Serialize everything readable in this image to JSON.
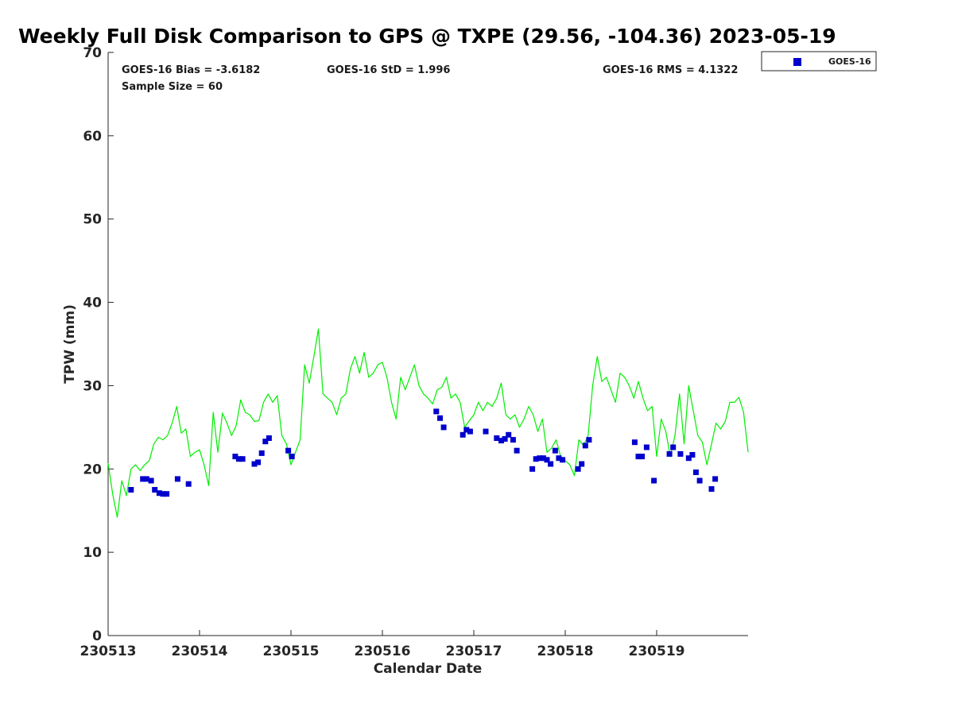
{
  "chart_data": {
    "type": "scatter",
    "title": "Weekly Full Disk Comparison to GPS @ TXPE (29.56, -104.36) 2023-05-19",
    "xlabel": "Calendar Date",
    "ylabel": "TPW (mm)",
    "xlim": [
      230513,
      230520
    ],
    "ylim": [
      0,
      70
    ],
    "x_ticks": [
      {
        "value": 230513,
        "label": "230513"
      },
      {
        "value": 230514,
        "label": "230514"
      },
      {
        "value": 230515,
        "label": "230515"
      },
      {
        "value": 230516,
        "label": "230516"
      },
      {
        "value": 230517,
        "label": "230517"
      },
      {
        "value": 230518,
        "label": "230518"
      },
      {
        "value": 230519,
        "label": "230519"
      }
    ],
    "y_ticks": [
      {
        "value": 0,
        "label": "0"
      },
      {
        "value": 10,
        "label": "10"
      },
      {
        "value": 20,
        "label": "20"
      },
      {
        "value": 30,
        "label": "30"
      },
      {
        "value": 40,
        "label": "40"
      },
      {
        "value": 50,
        "label": "50"
      },
      {
        "value": 60,
        "label": "60"
      },
      {
        "value": 70,
        "label": "70"
      }
    ],
    "grid": false,
    "legend_position": "top-right, outside plot",
    "stats": {
      "bias": "GOES-16 Bias = -3.6182",
      "std": "GOES-16 StD = 1.996",
      "rms": "GOES-16 RMS = 4.1322",
      "sample": "Sample Size = 60"
    },
    "colors": {
      "gps": "#00ee00",
      "goes": "#0000cc",
      "axis": "#262626"
    },
    "series": [
      {
        "name": "GOES-16",
        "marker": "square",
        "x": [
          230513.25,
          230513.38,
          230513.42,
          230513.47,
          230513.51,
          230513.56,
          230513.6,
          230513.64,
          230513.76,
          230513.88,
          230514.39,
          230514.43,
          230514.47,
          230514.6,
          230514.64,
          230514.68,
          230514.72,
          230514.76,
          230514.97,
          230515.01,
          230516.59,
          230516.63,
          230516.67,
          230516.88,
          230516.92,
          230516.96,
          230517.13,
          230517.25,
          230517.3,
          230517.34,
          230517.38,
          230517.43,
          230517.47,
          230517.64,
          230517.68,
          230517.72,
          230517.76,
          230517.8,
          230517.84,
          230517.89,
          230517.93,
          230517.97,
          230518.14,
          230518.18,
          230518.22,
          230518.26,
          230518.76,
          230518.8,
          230518.84,
          230518.89,
          230518.97,
          230519.14,
          230519.18,
          230519.26,
          230519.35,
          230519.39,
          230519.43,
          230519.47,
          230519.6,
          230519.64
        ],
        "y": [
          17.5,
          18.8,
          18.8,
          18.6,
          17.5,
          17.1,
          17.0,
          17.0,
          18.8,
          18.2,
          21.5,
          21.2,
          21.2,
          20.6,
          20.8,
          21.9,
          23.3,
          23.7,
          22.2,
          21.5,
          26.9,
          26.1,
          25.0,
          24.1,
          24.7,
          24.5,
          24.5,
          23.7,
          23.4,
          23.6,
          24.1,
          23.5,
          22.2,
          20.0,
          21.2,
          21.3,
          21.3,
          21.1,
          20.6,
          22.2,
          21.3,
          21.1,
          20.0,
          20.6,
          22.8,
          23.5,
          23.2,
          21.5,
          21.5,
          22.6,
          18.6,
          21.8,
          22.6,
          21.8,
          21.3,
          21.7,
          19.6,
          18.6,
          17.6,
          18.8
        ]
      },
      {
        "name": "",
        "marker": "line",
        "x": [
          230513.0,
          230513.05,
          230513.1,
          230513.15,
          230513.2,
          230513.25,
          230513.3,
          230513.35,
          230513.4,
          230513.45,
          230513.5,
          230513.55,
          230513.6,
          230513.65,
          230513.7,
          230513.75,
          230513.8,
          230513.85,
          230513.9,
          230513.95,
          230514.0,
          230514.05,
          230514.1,
          230514.15,
          230514.2,
          230514.25,
          230514.3,
          230514.35,
          230514.4,
          230514.45,
          230514.5,
          230514.55,
          230514.6,
          230514.65,
          230514.7,
          230514.75,
          230514.8,
          230514.85,
          230514.9,
          230514.95,
          230515.0,
          230515.05,
          230515.1,
          230515.15,
          230515.2,
          230515.25,
          230515.3,
          230515.35,
          230515.4,
          230515.45,
          230515.5,
          230515.55,
          230515.6,
          230515.65,
          230515.7,
          230515.75,
          230515.8,
          230515.85,
          230515.9,
          230515.95,
          230516.0,
          230516.05,
          230516.1,
          230516.15,
          230516.2,
          230516.25,
          230516.3,
          230516.35,
          230516.4,
          230516.45,
          230516.5,
          230516.55,
          230516.6,
          230516.65,
          230516.7,
          230516.75,
          230516.8,
          230516.85,
          230516.9,
          230516.95,
          230517.0,
          230517.05,
          230517.1,
          230517.15,
          230517.2,
          230517.25,
          230517.3,
          230517.35,
          230517.4,
          230517.45,
          230517.5,
          230517.55,
          230517.6,
          230517.65,
          230517.7,
          230517.75,
          230517.8,
          230517.85,
          230517.9,
          230517.95,
          230518.0,
          230518.05,
          230518.1,
          230518.15,
          230518.2,
          230518.25,
          230518.3,
          230518.35,
          230518.4,
          230518.45,
          230518.5,
          230518.55,
          230518.6,
          230518.65,
          230518.7,
          230518.75,
          230518.8,
          230518.85,
          230518.9,
          230518.95,
          230519.0,
          230519.05,
          230519.1,
          230519.15,
          230519.2,
          230519.25,
          230519.3,
          230519.35,
          230519.4,
          230519.45,
          230519.5,
          230519.55,
          230519.6,
          230519.65,
          230519.7,
          230519.75,
          230519.8,
          230519.85,
          230519.9,
          230519.95,
          230520.0
        ],
        "y": [
          20.7,
          17.0,
          14.2,
          18.6,
          16.8,
          20.0,
          20.5,
          19.8,
          20.5,
          21.0,
          23.0,
          23.8,
          23.5,
          24.0,
          25.5,
          27.5,
          24.3,
          24.8,
          21.5,
          22.0,
          22.3,
          20.5,
          18.0,
          26.8,
          22.0,
          26.7,
          25.5,
          24.0,
          25.2,
          28.3,
          26.8,
          26.5,
          25.7,
          25.8,
          28.0,
          29.0,
          28.0,
          28.8,
          24.0,
          23.0,
          20.5,
          22.0,
          23.5,
          32.5,
          30.3,
          33.5,
          36.8,
          29.0,
          28.5,
          28.0,
          26.5,
          28.5,
          29.0,
          32.0,
          33.5,
          31.5,
          34.0,
          31.0,
          31.5,
          32.5,
          32.8,
          31.0,
          28.0,
          26.0,
          31.0,
          29.5,
          31.0,
          32.5,
          30.0,
          29.0,
          28.5,
          27.8,
          29.5,
          29.8,
          31.0,
          28.5,
          29.0,
          28.0,
          25.0,
          25.8,
          26.5,
          28.0,
          27.0,
          28.0,
          27.5,
          28.5,
          30.3,
          26.5,
          26.0,
          26.5,
          25.0,
          26.0,
          27.5,
          26.5,
          24.5,
          26.0,
          22.0,
          22.5,
          23.5,
          21.5,
          21.0,
          20.5,
          19.2,
          23.5,
          22.8,
          24.0,
          30.0,
          33.5,
          30.5,
          31.0,
          29.5,
          28.0,
          31.5,
          31.0,
          30.0,
          28.5,
          30.5,
          28.5,
          27.0,
          27.5,
          21.5,
          26.0,
          24.5,
          21.5,
          24.0,
          29.0,
          23.0,
          30.0,
          27.0,
          24.0,
          23.2,
          20.5,
          23.0,
          25.5,
          24.8,
          25.7,
          28.0,
          28.0,
          28.6,
          26.8,
          22.0
        ]
      }
    ]
  }
}
